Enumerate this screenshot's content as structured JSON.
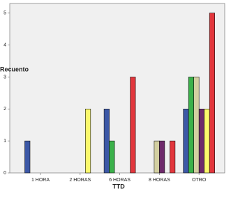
{
  "chart_data": {
    "type": "bar",
    "x_label": "TTD",
    "y_label": "Recuento",
    "categories": [
      "1 HORA",
      "2 HORAS",
      "6 HORAS",
      "8 HORAS",
      "OTRO"
    ],
    "series": [
      {
        "color": "#3c58a6",
        "values": [
          1,
          0,
          2,
          0,
          2
        ]
      },
      {
        "color": "#3bb14a",
        "values": [
          0,
          0,
          1,
          0,
          3
        ]
      },
      {
        "color": "#d2cfa1",
        "values": [
          0,
          0,
          0,
          1,
          3
        ]
      },
      {
        "color": "#6e2a6b",
        "values": [
          0,
          0,
          0,
          1,
          2
        ]
      },
      {
        "color": "#fbf96c",
        "values": [
          0,
          2,
          0,
          0,
          2
        ]
      },
      {
        "color": "#e2363c",
        "values": [
          0,
          0,
          3,
          1,
          5
        ]
      }
    ],
    "ylim": [
      0,
      5.3
    ],
    "yticks": [
      0,
      1,
      2,
      3,
      4,
      5
    ]
  }
}
